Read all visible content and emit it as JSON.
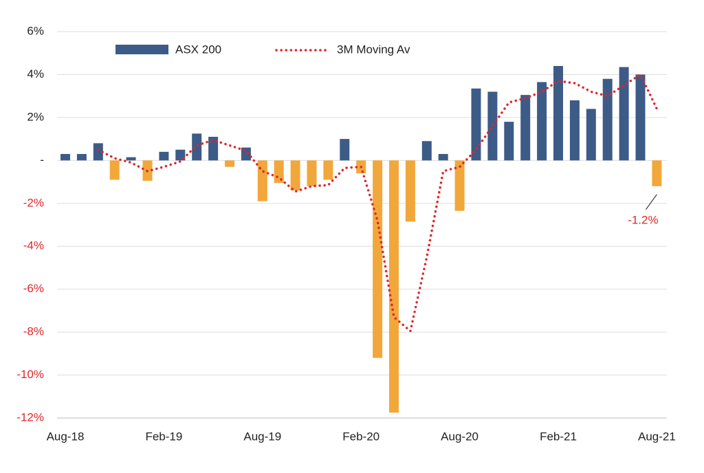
{
  "chart_data": {
    "type": "bar",
    "categories": [
      "Aug-18",
      null,
      null,
      null,
      null,
      null,
      "Feb-19",
      null,
      null,
      null,
      null,
      null,
      "Aug-19",
      null,
      null,
      null,
      null,
      null,
      "Feb-20",
      null,
      null,
      null,
      null,
      null,
      "Aug-20",
      null,
      null,
      null,
      null,
      null,
      "Feb-21",
      null,
      null,
      null,
      null,
      null,
      "Aug-21"
    ],
    "series": [
      {
        "name": "ASX 200",
        "type": "bar",
        "color": "#3d5b87",
        "negative_color": "#f2a73b",
        "values": [
          0.3,
          0.3,
          0.8,
          -0.9,
          0.15,
          -0.95,
          0.4,
          0.5,
          1.25,
          1.1,
          -0.3,
          0.6,
          -1.9,
          -1.05,
          -1.4,
          -1.2,
          -0.9,
          1.0,
          -0.6,
          -9.2,
          -11.75,
          -2.85,
          0.9,
          0.3,
          -2.35,
          3.35,
          3.2,
          1.8,
          3.05,
          3.65,
          4.4,
          2.8,
          2.4,
          3.8,
          4.35,
          4.0,
          -1.2
        ]
      },
      {
        "name": "3M Moving Av",
        "type": "line",
        "color": "#e0252b",
        "values": [
          null,
          null,
          0.5,
          0.1,
          -0.1,
          -0.5,
          -0.3,
          -0.05,
          0.7,
          0.95,
          0.7,
          0.45,
          -0.5,
          -0.8,
          -1.45,
          -1.2,
          -1.15,
          -0.35,
          -0.3,
          -2.8,
          -7.3,
          -7.95,
          -4.5,
          -0.5,
          -0.3,
          0.5,
          1.6,
          2.7,
          2.9,
          3.2,
          3.7,
          3.6,
          3.2,
          3.0,
          3.5,
          4.0,
          2.4
        ]
      }
    ],
    "ylim": [
      -12,
      6
    ],
    "yticks": [
      {
        "value": -12,
        "label": "-12%"
      },
      {
        "value": -10,
        "label": "-10%"
      },
      {
        "value": -8,
        "label": "-8%"
      },
      {
        "value": -6,
        "label": "-6%"
      },
      {
        "value": -4,
        "label": "-4%"
      },
      {
        "value": -2,
        "label": "-2%"
      },
      {
        "value": 0,
        "label": "-"
      },
      {
        "value": 2,
        "label": "2%"
      },
      {
        "value": 4,
        "label": "4%"
      },
      {
        "value": 6,
        "label": "6%"
      }
    ],
    "negative_label_color": "#e0252b",
    "grid": true,
    "annotation": {
      "text": "-1.2%",
      "color": "#e0252b"
    }
  }
}
